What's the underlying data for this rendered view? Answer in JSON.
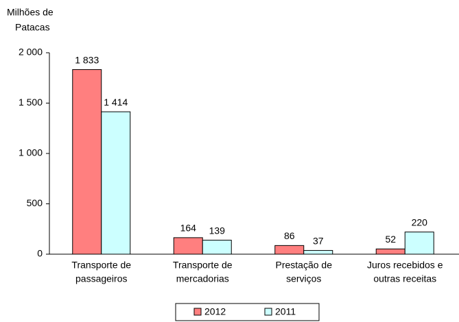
{
  "chart_data": {
    "type": "bar",
    "y_label": [
      "Milhões de",
      "Patacas"
    ],
    "categories": [
      [
        "Transporte de",
        "passageiros"
      ],
      [
        "Transporte de",
        "mercadorias"
      ],
      [
        "Prestação de",
        "serviços"
      ],
      [
        "Juros recebidos e",
        "outras receitas"
      ]
    ],
    "series": [
      {
        "name": "2012",
        "color": "#ff7f7f",
        "values": [
          1833,
          164,
          86,
          52
        ],
        "value_labels": [
          "1 833",
          "164",
          "86",
          "52"
        ]
      },
      {
        "name": "2011",
        "color": "#ccffff",
        "values": [
          1414,
          139,
          37,
          220
        ],
        "value_labels": [
          "1 414",
          "139",
          "37",
          "220"
        ]
      }
    ],
    "ylim": [
      0,
      2000
    ],
    "yticks": [
      0,
      500,
      {
        "value": 1000,
        "label": "1 000"
      },
      {
        "value": 1500,
        "label": "1 500"
      },
      {
        "value": 2000,
        "label": "2 000"
      }
    ],
    "legend": "bottom"
  }
}
